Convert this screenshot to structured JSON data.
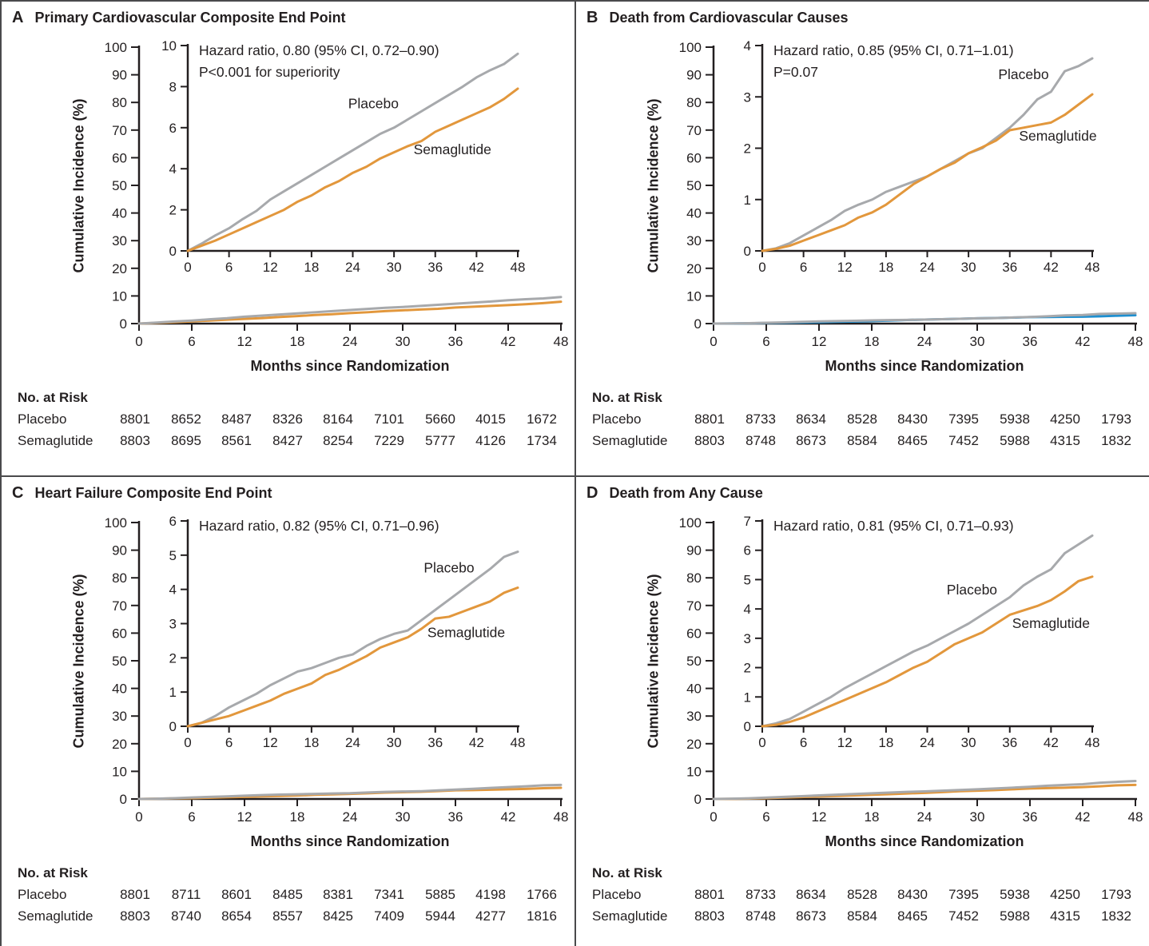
{
  "figure": {
    "ylabel": "Cumulative Incidence (%)",
    "xlabel": "Months since Randomization",
    "risk_header": "No. at Risk",
    "colors": {
      "placebo_gray": "#A7A9AC",
      "semaglutide_orange": "#E2973C",
      "panel_b_main_semaglutide_blue": "#1E8FD0",
      "axis_and_text": "#231F20"
    }
  },
  "chart_data": [
    {
      "type": "line",
      "panel_letter": "A",
      "title": "Primary Cardiovascular Composite End Point",
      "annotation_line1": "Hazard ratio, 0.80 (95% CI, 0.72–0.90)",
      "annotation_line2": "P<0.001 for superiority",
      "xlabel": "Months since Randomization",
      "ylabel": "Cumulative Incidence (%)",
      "x": [
        0,
        2,
        4,
        6,
        8,
        10,
        12,
        14,
        16,
        18,
        20,
        22,
        24,
        26,
        28,
        30,
        32,
        34,
        36,
        38,
        40,
        42,
        44,
        46,
        48
      ],
      "xticks": [
        0,
        6,
        12,
        18,
        24,
        30,
        36,
        42,
        48
      ],
      "main_ylim": [
        0,
        100
      ],
      "main_yticks": [
        0,
        10,
        20,
        30,
        40,
        50,
        60,
        70,
        80,
        90,
        100
      ],
      "inset_ylim": [
        0,
        10
      ],
      "inset_yticks": [
        0,
        2,
        4,
        6,
        8,
        10
      ],
      "series": [
        {
          "name": "Placebo",
          "color_key": "placebo_gray",
          "main_color_key": "placebo_gray",
          "label_pos": [
            27,
            6.95
          ],
          "values": [
            0,
            0.35,
            0.75,
            1.1,
            1.55,
            1.95,
            2.5,
            2.9,
            3.3,
            3.7,
            4.1,
            4.5,
            4.9,
            5.3,
            5.7,
            6.0,
            6.4,
            6.8,
            7.2,
            7.6,
            8.0,
            8.45,
            8.8,
            9.1,
            9.6
          ]
        },
        {
          "name": "Semaglutide",
          "color_key": "semaglutide_orange",
          "main_color_key": "semaglutide_orange",
          "label_pos": [
            38.5,
            4.7
          ],
          "values": [
            0,
            0.25,
            0.5,
            0.8,
            1.1,
            1.4,
            1.7,
            2.0,
            2.4,
            2.7,
            3.1,
            3.4,
            3.8,
            4.1,
            4.5,
            4.8,
            5.1,
            5.35,
            5.8,
            6.1,
            6.4,
            6.7,
            7.0,
            7.4,
            7.9
          ]
        }
      ],
      "risk_table": {
        "rows": [
          {
            "label": "Placebo",
            "values": [
              "8801",
              "8652",
              "8487",
              "8326",
              "8164",
              "7101",
              "5660",
              "4015",
              "1672"
            ]
          },
          {
            "label": "Semaglutide",
            "values": [
              "8803",
              "8695",
              "8561",
              "8427",
              "8254",
              "7229",
              "5777",
              "4126",
              "1734"
            ]
          }
        ]
      }
    },
    {
      "type": "line",
      "panel_letter": "B",
      "title": "Death from Cardiovascular Causes",
      "annotation_line1": "Hazard ratio, 0.85 (95% CI, 0.71–1.01)",
      "annotation_line2": "P=0.07",
      "xlabel": "Months since Randomization",
      "ylabel": "Cumulative Incidence (%)",
      "x": [
        0,
        2,
        4,
        6,
        8,
        10,
        12,
        14,
        16,
        18,
        20,
        22,
        24,
        26,
        28,
        30,
        32,
        34,
        36,
        38,
        40,
        42,
        44,
        46,
        48
      ],
      "xticks": [
        0,
        6,
        12,
        18,
        24,
        30,
        36,
        42,
        48
      ],
      "main_ylim": [
        0,
        100
      ],
      "main_yticks": [
        0,
        10,
        20,
        30,
        40,
        50,
        60,
        70,
        80,
        90,
        100
      ],
      "inset_ylim": [
        0,
        4
      ],
      "inset_yticks": [
        0,
        1,
        2,
        3,
        4
      ],
      "series": [
        {
          "name": "Placebo",
          "color_key": "placebo_gray",
          "main_color_key": "placebo_gray",
          "label_pos": [
            38,
            3.35
          ],
          "values": [
            0,
            0.05,
            0.15,
            0.3,
            0.45,
            0.6,
            0.78,
            0.9,
            1.0,
            1.15,
            1.25,
            1.35,
            1.45,
            1.6,
            1.75,
            1.9,
            2.0,
            2.2,
            2.4,
            2.65,
            2.95,
            3.1,
            3.5,
            3.6,
            3.75
          ]
        },
        {
          "name": "Semaglutide",
          "color_key": "semaglutide_orange",
          "main_color_key": "panel_b_main_semaglutide_blue",
          "label_pos": [
            43,
            2.15
          ],
          "values": [
            0,
            0.04,
            0.1,
            0.2,
            0.3,
            0.4,
            0.5,
            0.65,
            0.75,
            0.9,
            1.1,
            1.3,
            1.45,
            1.6,
            1.72,
            1.9,
            2.02,
            2.15,
            2.35,
            2.4,
            2.45,
            2.5,
            2.65,
            2.85,
            3.05
          ]
        }
      ],
      "risk_table": {
        "rows": [
          {
            "label": "Placebo",
            "values": [
              "8801",
              "8733",
              "8634",
              "8528",
              "8430",
              "7395",
              "5938",
              "4250",
              "1793"
            ]
          },
          {
            "label": "Semaglutide",
            "values": [
              "8803",
              "8748",
              "8673",
              "8584",
              "8465",
              "7452",
              "5988",
              "4315",
              "1832"
            ]
          }
        ]
      }
    },
    {
      "type": "line",
      "panel_letter": "C",
      "title": "Heart Failure Composite End Point",
      "annotation_line1": "Hazard ratio, 0.82 (95% CI, 0.71–0.96)",
      "annotation_line2": "",
      "xlabel": "Months since Randomization",
      "ylabel": "Cumulative Incidence (%)",
      "x": [
        0,
        2,
        4,
        6,
        8,
        10,
        12,
        14,
        16,
        18,
        20,
        22,
        24,
        26,
        28,
        30,
        32,
        34,
        36,
        38,
        40,
        42,
        44,
        46,
        48
      ],
      "xticks": [
        0,
        6,
        12,
        18,
        24,
        30,
        36,
        42,
        48
      ],
      "main_ylim": [
        0,
        100
      ],
      "main_yticks": [
        0,
        10,
        20,
        30,
        40,
        50,
        60,
        70,
        80,
        90,
        100
      ],
      "inset_ylim": [
        0,
        6
      ],
      "inset_yticks": [
        0,
        1,
        2,
        3,
        4,
        5,
        6
      ],
      "series": [
        {
          "name": "Placebo",
          "color_key": "placebo_gray",
          "main_color_key": "placebo_gray",
          "label_pos": [
            38,
            4.5
          ],
          "values": [
            0,
            0.1,
            0.3,
            0.55,
            0.75,
            0.95,
            1.2,
            1.4,
            1.6,
            1.7,
            1.85,
            2.0,
            2.1,
            2.35,
            2.55,
            2.7,
            2.8,
            3.1,
            3.4,
            3.7,
            4.0,
            4.3,
            4.6,
            4.95,
            5.1
          ]
        },
        {
          "name": "Semaglutide",
          "color_key": "semaglutide_orange",
          "main_color_key": "semaglutide_orange",
          "label_pos": [
            40.5,
            2.6
          ],
          "values": [
            0,
            0.1,
            0.2,
            0.3,
            0.45,
            0.6,
            0.75,
            0.95,
            1.1,
            1.25,
            1.5,
            1.65,
            1.85,
            2.05,
            2.3,
            2.45,
            2.6,
            2.85,
            3.15,
            3.2,
            3.35,
            3.5,
            3.65,
            3.9,
            4.05
          ]
        }
      ],
      "risk_table": {
        "rows": [
          {
            "label": "Placebo",
            "values": [
              "8801",
              "8711",
              "8601",
              "8485",
              "8381",
              "7341",
              "5885",
              "4198",
              "1766"
            ]
          },
          {
            "label": "Semaglutide",
            "values": [
              "8803",
              "8740",
              "8654",
              "8557",
              "8425",
              "7409",
              "5944",
              "4277",
              "1816"
            ]
          }
        ]
      }
    },
    {
      "type": "line",
      "panel_letter": "D",
      "title": "Death from Any Cause",
      "annotation_line1": "Hazard ratio, 0.81 (95% CI, 0.71–0.93)",
      "annotation_line2": "",
      "xlabel": "Months since Randomization",
      "ylabel": "Cumulative Incidence (%)",
      "x": [
        0,
        2,
        4,
        6,
        8,
        10,
        12,
        14,
        16,
        18,
        20,
        22,
        24,
        26,
        28,
        30,
        32,
        34,
        36,
        38,
        40,
        42,
        44,
        46,
        48
      ],
      "xticks": [
        0,
        6,
        12,
        18,
        24,
        30,
        36,
        42,
        48
      ],
      "main_ylim": [
        0,
        100
      ],
      "main_yticks": [
        0,
        10,
        20,
        30,
        40,
        50,
        60,
        70,
        80,
        90,
        100
      ],
      "inset_ylim": [
        0,
        7
      ],
      "inset_yticks": [
        0,
        1,
        2,
        3,
        4,
        5,
        6,
        7
      ],
      "series": [
        {
          "name": "Placebo",
          "color_key": "placebo_gray",
          "main_color_key": "placebo_gray",
          "label_pos": [
            30.5,
            4.5
          ],
          "values": [
            0,
            0.1,
            0.25,
            0.5,
            0.75,
            1.0,
            1.3,
            1.55,
            1.8,
            2.05,
            2.3,
            2.55,
            2.75,
            3.0,
            3.25,
            3.5,
            3.8,
            4.1,
            4.4,
            4.8,
            5.1,
            5.35,
            5.9,
            6.2,
            6.5
          ]
        },
        {
          "name": "Semaglutide",
          "color_key": "semaglutide_orange",
          "main_color_key": "semaglutide_orange",
          "label_pos": [
            42,
            3.35
          ],
          "values": [
            0,
            0.05,
            0.15,
            0.3,
            0.5,
            0.7,
            0.9,
            1.1,
            1.3,
            1.5,
            1.75,
            2.0,
            2.2,
            2.5,
            2.8,
            3.0,
            3.2,
            3.5,
            3.8,
            3.95,
            4.1,
            4.3,
            4.6,
            4.95,
            5.1
          ]
        }
      ],
      "risk_table": {
        "rows": [
          {
            "label": "Placebo",
            "values": [
              "8801",
              "8733",
              "8634",
              "8528",
              "8430",
              "7395",
              "5938",
              "4250",
              "1793"
            ]
          },
          {
            "label": "Semaglutide",
            "values": [
              "8803",
              "8748",
              "8673",
              "8584",
              "8465",
              "7452",
              "5988",
              "4315",
              "1832"
            ]
          }
        ]
      }
    }
  ]
}
